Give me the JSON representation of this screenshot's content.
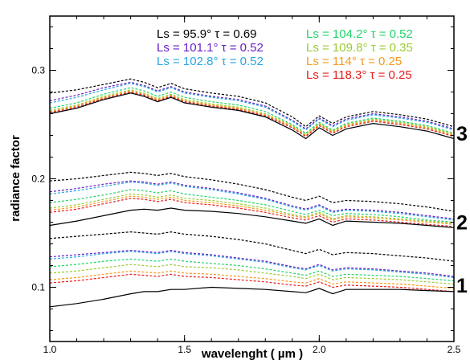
{
  "chart_data": {
    "type": "line",
    "title": "",
    "xlabel": "wavelenght ( µm )",
    "ylabel": "radiance factor",
    "xlim": [
      1.0,
      2.5
    ],
    "ylim": [
      0.05,
      0.35
    ],
    "x_ticks": [
      {
        "value": 1.0,
        "label": "1.0"
      },
      {
        "value": 1.5,
        "label": "1.5"
      },
      {
        "value": 2.0,
        "label": "2.0"
      },
      {
        "value": 2.5,
        "label": "2.5"
      }
    ],
    "y_ticks": [
      {
        "value": 0.1,
        "label": "0.1"
      },
      {
        "value": 0.2,
        "label": "0.2"
      },
      {
        "value": 0.3,
        "label": "0.3"
      }
    ],
    "grid": false,
    "legend_position": "top",
    "legend": [
      {
        "label": "Ls = 95.9° τ = 0.69",
        "color": "#000000"
      },
      {
        "label": "Ls = 101.1° τ = 0.52",
        "color": "#6a1fc8"
      },
      {
        "label": "Ls = 102.8° τ = 0.52",
        "color": "#2aa6e0"
      },
      {
        "label": "Ls = 104.2° τ = 0.52",
        "color": "#22d46a"
      },
      {
        "label": "Ls = 109.8° τ = 0.35",
        "color": "#9acd32"
      },
      {
        "label": "Ls = 114° τ = 0.25",
        "color": "#f59a1c"
      },
      {
        "label": "Ls = 118.3° τ = 0.25",
        "color": "#e81c1c"
      }
    ],
    "group_labels": [
      {
        "label": "3",
        "value": 0.242
      },
      {
        "label": "2",
        "value": 0.16
      },
      {
        "label": "1",
        "value": 0.102
      }
    ],
    "x": [
      1.0,
      1.1,
      1.2,
      1.3,
      1.35,
      1.4,
      1.45,
      1.5,
      1.6,
      1.7,
      1.8,
      1.9,
      1.95,
      2.0,
      2.05,
      2.1,
      2.2,
      2.3,
      2.4,
      2.5
    ],
    "groups": [
      {
        "group": "3",
        "series": [
          {
            "color": "#000000",
            "style": "dashed",
            "values": [
              0.279,
              0.282,
              0.287,
              0.292,
              0.289,
              0.284,
              0.288,
              0.283,
              0.279,
              0.276,
              0.27,
              0.257,
              0.248,
              0.258,
              0.251,
              0.257,
              0.262,
              0.259,
              0.255,
              0.248
            ]
          },
          {
            "color": "#6a1fc8",
            "style": "dashed",
            "values": [
              0.272,
              0.277,
              0.284,
              0.289,
              0.286,
              0.281,
              0.285,
              0.28,
              0.276,
              0.273,
              0.267,
              0.254,
              0.246,
              0.256,
              0.249,
              0.255,
              0.26,
              0.257,
              0.253,
              0.246
            ]
          },
          {
            "color": "#2aa6e0",
            "style": "dashed",
            "values": [
              0.27,
              0.275,
              0.282,
              0.288,
              0.285,
              0.28,
              0.284,
              0.279,
              0.275,
              0.272,
              0.266,
              0.253,
              0.245,
              0.255,
              0.248,
              0.254,
              0.259,
              0.256,
              0.252,
              0.245
            ]
          },
          {
            "color": "#22d46a",
            "style": "dashed",
            "values": [
              0.265,
              0.27,
              0.278,
              0.284,
              0.281,
              0.276,
              0.28,
              0.275,
              0.271,
              0.268,
              0.262,
              0.25,
              0.242,
              0.252,
              0.245,
              0.251,
              0.256,
              0.253,
              0.249,
              0.242
            ]
          },
          {
            "color": "#9acd32",
            "style": "dashed",
            "values": [
              0.263,
              0.268,
              0.276,
              0.282,
              0.279,
              0.274,
              0.278,
              0.273,
              0.269,
              0.266,
              0.26,
              0.249,
              0.241,
              0.251,
              0.244,
              0.25,
              0.255,
              0.252,
              0.248,
              0.241
            ]
          },
          {
            "color": "#f59a1c",
            "style": "dashed",
            "values": [
              0.262,
              0.267,
              0.275,
              0.281,
              0.278,
              0.273,
              0.277,
              0.272,
              0.268,
              0.265,
              0.259,
              0.248,
              0.24,
              0.25,
              0.243,
              0.249,
              0.254,
              0.251,
              0.247,
              0.24
            ]
          },
          {
            "color": "#e81c1c",
            "style": "dashed",
            "values": [
              0.261,
              0.266,
              0.274,
              0.28,
              0.277,
              0.272,
              0.276,
              0.271,
              0.267,
              0.264,
              0.258,
              0.247,
              0.239,
              0.249,
              0.242,
              0.248,
              0.253,
              0.25,
              0.246,
              0.239
            ]
          },
          {
            "color": "#000000",
            "style": "solid",
            "values": [
              0.26,
              0.265,
              0.273,
              0.279,
              0.276,
              0.271,
              0.275,
              0.27,
              0.266,
              0.263,
              0.257,
              0.245,
              0.237,
              0.247,
              0.24,
              0.246,
              0.251,
              0.248,
              0.244,
              0.237
            ]
          }
        ]
      },
      {
        "group": "2",
        "series": [
          {
            "color": "#000000",
            "style": "dashed",
            "values": [
              0.198,
              0.2,
              0.203,
              0.206,
              0.205,
              0.203,
              0.205,
              0.202,
              0.199,
              0.195,
              0.19,
              0.183,
              0.18,
              0.184,
              0.178,
              0.18,
              0.179,
              0.177,
              0.174,
              0.17
            ]
          },
          {
            "color": "#6a1fc8",
            "style": "dashed",
            "values": [
              0.188,
              0.191,
              0.195,
              0.198,
              0.197,
              0.195,
              0.197,
              0.194,
              0.191,
              0.187,
              0.182,
              0.175,
              0.172,
              0.176,
              0.17,
              0.172,
              0.171,
              0.169,
              0.166,
              0.163
            ]
          },
          {
            "color": "#2aa6e0",
            "style": "dashed",
            "values": [
              0.186,
              0.189,
              0.193,
              0.197,
              0.196,
              0.194,
              0.196,
              0.193,
              0.19,
              0.186,
              0.181,
              0.174,
              0.171,
              0.175,
              0.169,
              0.171,
              0.17,
              0.168,
              0.165,
              0.162
            ]
          },
          {
            "color": "#22d46a",
            "style": "dashed",
            "values": [
              0.178,
              0.181,
              0.185,
              0.19,
              0.189,
              0.187,
              0.189,
              0.186,
              0.183,
              0.18,
              0.176,
              0.17,
              0.167,
              0.171,
              0.166,
              0.168,
              0.167,
              0.165,
              0.162,
              0.16
            ]
          },
          {
            "color": "#9acd32",
            "style": "dashed",
            "values": [
              0.173,
              0.176,
              0.181,
              0.186,
              0.185,
              0.183,
              0.185,
              0.182,
              0.18,
              0.177,
              0.173,
              0.167,
              0.165,
              0.169,
              0.163,
              0.166,
              0.165,
              0.163,
              0.161,
              0.159
            ]
          },
          {
            "color": "#f59a1c",
            "style": "dashed",
            "values": [
              0.171,
              0.174,
              0.179,
              0.184,
              0.183,
              0.181,
              0.183,
              0.18,
              0.178,
              0.175,
              0.171,
              0.166,
              0.164,
              0.168,
              0.162,
              0.165,
              0.164,
              0.162,
              0.16,
              0.158
            ]
          },
          {
            "color": "#e81c1c",
            "style": "dashed",
            "values": [
              0.169,
              0.172,
              0.177,
              0.182,
              0.181,
              0.179,
              0.181,
              0.178,
              0.176,
              0.173,
              0.169,
              0.164,
              0.162,
              0.166,
              0.16,
              0.163,
              0.162,
              0.16,
              0.158,
              0.156
            ]
          },
          {
            "color": "#000000",
            "style": "solid",
            "values": [
              0.157,
              0.161,
              0.166,
              0.171,
              0.172,
              0.171,
              0.173,
              0.171,
              0.17,
              0.168,
              0.165,
              0.161,
              0.159,
              0.163,
              0.157,
              0.161,
              0.16,
              0.159,
              0.157,
              0.155
            ]
          }
        ]
      },
      {
        "group": "1",
        "series": [
          {
            "color": "#000000",
            "style": "dashed",
            "values": [
              0.145,
              0.147,
              0.149,
              0.151,
              0.15,
              0.149,
              0.151,
              0.149,
              0.147,
              0.144,
              0.14,
              0.134,
              0.131,
              0.135,
              0.13,
              0.132,
              0.131,
              0.129,
              0.127,
              0.124
            ]
          },
          {
            "color": "#6a1fc8",
            "style": "dashed",
            "values": [
              0.128,
              0.13,
              0.132,
              0.134,
              0.133,
              0.132,
              0.134,
              0.132,
              0.13,
              0.127,
              0.124,
              0.119,
              0.117,
              0.121,
              0.116,
              0.118,
              0.117,
              0.115,
              0.113,
              0.11
            ]
          },
          {
            "color": "#2aa6e0",
            "style": "dashed",
            "values": [
              0.126,
              0.128,
              0.131,
              0.133,
              0.132,
              0.131,
              0.133,
              0.131,
              0.129,
              0.126,
              0.123,
              0.118,
              0.116,
              0.12,
              0.115,
              0.117,
              0.116,
              0.114,
              0.112,
              0.109
            ]
          },
          {
            "color": "#22d46a",
            "style": "dashed",
            "values": [
              0.119,
              0.121,
              0.124,
              0.126,
              0.125,
              0.124,
              0.126,
              0.124,
              0.122,
              0.12,
              0.117,
              0.113,
              0.111,
              0.115,
              0.11,
              0.112,
              0.111,
              0.11,
              0.108,
              0.106
            ]
          },
          {
            "color": "#9acd32",
            "style": "dashed",
            "values": [
              0.113,
              0.115,
              0.118,
              0.121,
              0.12,
              0.119,
              0.121,
              0.119,
              0.118,
              0.116,
              0.113,
              0.11,
              0.108,
              0.112,
              0.107,
              0.109,
              0.108,
              0.107,
              0.105,
              0.103
            ]
          },
          {
            "color": "#f59a1c",
            "style": "dashed",
            "values": [
              0.107,
              0.109,
              0.112,
              0.115,
              0.114,
              0.113,
              0.115,
              0.113,
              0.112,
              0.11,
              0.108,
              0.105,
              0.104,
              0.108,
              0.103,
              0.105,
              0.104,
              0.103,
              0.101,
              0.099
            ]
          },
          {
            "color": "#e81c1c",
            "style": "dashed",
            "values": [
              0.104,
              0.106,
              0.109,
              0.112,
              0.111,
              0.11,
              0.112,
              0.11,
              0.109,
              0.107,
              0.105,
              0.102,
              0.101,
              0.105,
              0.1,
              0.102,
              0.101,
              0.1,
              0.098,
              0.096
            ]
          },
          {
            "color": "#000000",
            "style": "solid",
            "values": [
              0.082,
              0.085,
              0.089,
              0.094,
              0.096,
              0.096,
              0.098,
              0.098,
              0.1,
              0.099,
              0.098,
              0.096,
              0.095,
              0.099,
              0.094,
              0.098,
              0.098,
              0.098,
              0.097,
              0.096
            ]
          }
        ]
      }
    ]
  }
}
